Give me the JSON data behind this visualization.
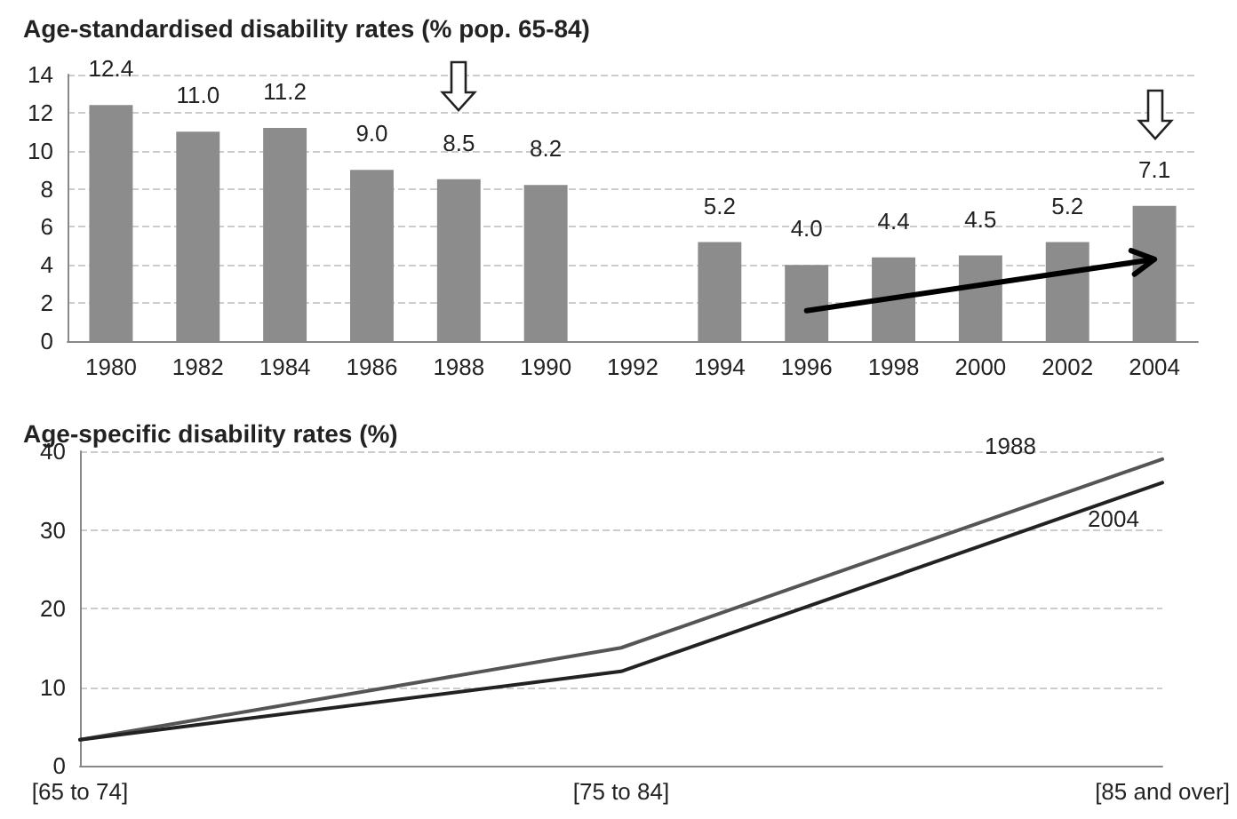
{
  "chart_data": [
    {
      "type": "bar",
      "title": "Age-standardised disability rates (% pop. 65-84)",
      "categories": [
        "1980",
        "1982",
        "1984",
        "1986",
        "1988",
        "1990",
        "1992",
        "1994",
        "1996",
        "1998",
        "2000",
        "2002",
        "2004"
      ],
      "values": [
        12.4,
        11.0,
        11.2,
        9.0,
        8.5,
        8.2,
        null,
        5.2,
        4.0,
        4.4,
        4.5,
        5.2,
        7.1
      ],
      "value_labels": [
        "12.4",
        "11.0",
        "11.2",
        "9.0",
        "8.5",
        "8.2",
        null,
        "5.2",
        "4.0",
        "4.4",
        "4.5",
        "5.2",
        "7.1"
      ],
      "color": "#8c8c8c",
      "ylim": [
        0,
        14
      ],
      "yticks": [
        0,
        2,
        4,
        6,
        8,
        10,
        12,
        14
      ],
      "grid": "y",
      "legend": false
    },
    {
      "type": "line",
      "title": "Age-specific disability rates (%)",
      "categories": [
        "[65 to 74]",
        "[75 to 84]",
        "[85 and over]"
      ],
      "series": [
        {
          "name": "1988",
          "color": "#555555",
          "values": [
            3.3,
            15,
            39
          ]
        },
        {
          "name": "2004",
          "color": "#222222",
          "values": [
            3.3,
            12,
            36
          ]
        }
      ],
      "ylim": [
        0,
        40
      ],
      "yticks": [
        0,
        10,
        20,
        30,
        40
      ],
      "grid": "y",
      "legend": false,
      "marker": "none",
      "line_style": "solid"
    }
  ]
}
